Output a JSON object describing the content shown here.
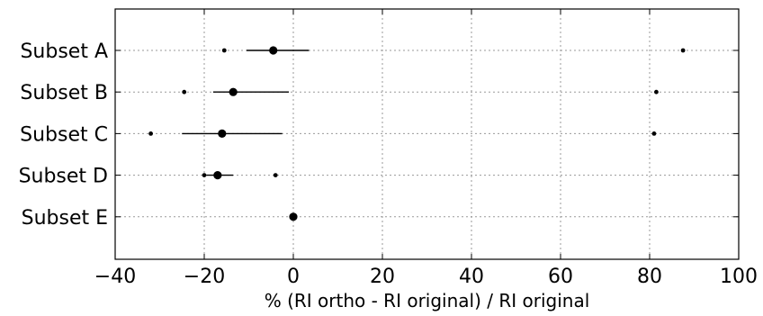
{
  "chart_data": {
    "type": "scatter",
    "title": "",
    "xlabel": "% (RI ortho - RI original) / RI original",
    "ylabel": "",
    "xlim": [
      -40,
      100
    ],
    "xticks": [
      -40,
      -20,
      0,
      20,
      40,
      60,
      80,
      100
    ],
    "xtick_labels": [
      "−40",
      "−20",
      "0",
      "20",
      "40",
      "60",
      "80",
      "100"
    ],
    "grid": true,
    "categories": [
      "Subset A",
      "Subset B",
      "Subset C",
      "Subset D",
      "Subset E"
    ],
    "estimates": [
      {
        "category": "Subset A",
        "mean": -4.5,
        "ci": [
          -10.5,
          3.5
        ],
        "points": [
          -15.5,
          87.5
        ]
      },
      {
        "category": "Subset B",
        "mean": -13.5,
        "ci": [
          -18,
          -1
        ],
        "points": [
          -24.5,
          81.5
        ]
      },
      {
        "category": "Subset C",
        "mean": -16,
        "ci": [
          -25,
          -2.5
        ],
        "points": [
          -32,
          81
        ]
      },
      {
        "category": "Subset D",
        "mean": -17,
        "ci": [
          -19.5,
          -13.5
        ],
        "points": [
          -20,
          -4
        ]
      },
      {
        "category": "Subset E",
        "mean": 0,
        "ci": [
          0,
          0
        ],
        "points": []
      }
    ]
  }
}
